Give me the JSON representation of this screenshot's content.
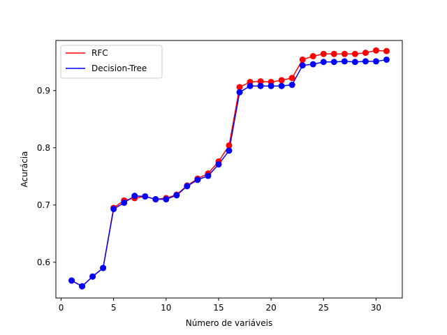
{
  "chart_data": {
    "type": "line",
    "title": "",
    "xlabel": "Número de variáveis",
    "ylabel": "Acurácia",
    "xlim": [
      -0.5,
      32.5
    ],
    "ylim": [
      0.5375,
      0.9875
    ],
    "grid": false,
    "legend_position": "top-left",
    "x": [
      1,
      2,
      3,
      4,
      5,
      6,
      7,
      8,
      9,
      10,
      11,
      12,
      13,
      14,
      15,
      16,
      17,
      18,
      19,
      20,
      21,
      22,
      23,
      24,
      25,
      26,
      27,
      28,
      29,
      30,
      31
    ],
    "x_ticks": [
      0,
      5,
      10,
      15,
      20,
      25,
      30
    ],
    "x_tick_labels": [
      "0",
      "5",
      "10",
      "15",
      "20",
      "25",
      "30"
    ],
    "y_ticks": [
      0.6,
      0.7,
      0.8,
      0.9
    ],
    "y_tick_labels": [
      "0.6",
      "0.7",
      "0.8",
      "0.9"
    ],
    "series": [
      {
        "name": "RFC",
        "color": "#ff0000",
        "values": [
          0.568,
          0.558,
          0.575,
          0.59,
          0.695,
          0.708,
          0.712,
          0.715,
          0.71,
          0.712,
          0.718,
          0.734,
          0.746,
          0.755,
          0.776,
          0.804,
          0.906,
          0.915,
          0.916,
          0.915,
          0.918,
          0.922,
          0.954,
          0.96,
          0.964,
          0.964,
          0.964,
          0.964,
          0.966,
          0.97,
          0.969
        ]
      },
      {
        "name": "Decision-Tree",
        "color": "#0000ff",
        "values": [
          0.568,
          0.558,
          0.575,
          0.59,
          0.693,
          0.704,
          0.716,
          0.715,
          0.71,
          0.71,
          0.717,
          0.733,
          0.744,
          0.751,
          0.771,
          0.795,
          0.897,
          0.908,
          0.908,
          0.908,
          0.908,
          0.91,
          0.944,
          0.946,
          0.95,
          0.95,
          0.951,
          0.95,
          0.951,
          0.951,
          0.954
        ]
      }
    ]
  }
}
